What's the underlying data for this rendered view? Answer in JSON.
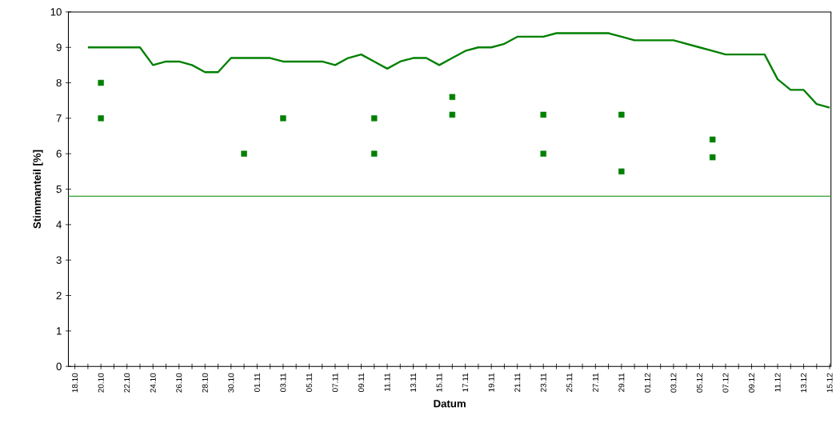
{
  "chart_data": {
    "type": "line",
    "xlabel": "Datum",
    "ylabel": "Stimmanteil [%]",
    "categories": [
      "18.10",
      null,
      "20.10",
      null,
      "22.10",
      null,
      "24.10",
      null,
      "26.10",
      null,
      "28.10",
      null,
      "30.10",
      null,
      "01.11",
      null,
      "03.11",
      null,
      "05.11",
      null,
      "07.11",
      null,
      "09.11",
      null,
      "11.11",
      null,
      "13.11",
      null,
      "15.11",
      null,
      "17.11",
      null,
      "19.11",
      null,
      "21.11",
      null,
      "23.11",
      null,
      "25.11",
      null,
      "27.11",
      null,
      "29.11",
      null,
      "01.12",
      null,
      "03.12",
      null,
      "05.12",
      null,
      "07.12",
      null,
      "09.12",
      null,
      "11.12",
      null,
      "13.12",
      null,
      "15.12"
    ],
    "ylim": [
      0,
      10
    ],
    "yticks": [
      0,
      1,
      2,
      3,
      4,
      5,
      6,
      7,
      8,
      9,
      10
    ],
    "series": [
      {
        "color": "#008000",
        "values": [
          null,
          9.0,
          9.0,
          9.0,
          9.0,
          9.0,
          8.5,
          8.6,
          8.6,
          8.5,
          8.3,
          8.3,
          8.7,
          8.7,
          8.7,
          8.7,
          8.6,
          8.6,
          8.6,
          8.6,
          8.5,
          8.7,
          8.8,
          8.6,
          8.4,
          8.6,
          8.7,
          8.7,
          8.5,
          8.7,
          8.9,
          9.0,
          9.0,
          9.1,
          9.3,
          9.3,
          9.3,
          9.4,
          9.4,
          9.4,
          9.4,
          9.4,
          9.3,
          9.2,
          9.2,
          9.2,
          9.2,
          9.1,
          9.0,
          8.9,
          8.8,
          8.8,
          8.8,
          8.8,
          8.1,
          7.8,
          7.8,
          7.4,
          7.3
        ]
      },
      {
        "type": "scatter",
        "marker": "square",
        "color": "#008000",
        "values": [
          null,
          null,
          8.0,
          null,
          null,
          null,
          null,
          null,
          null,
          null,
          null,
          null,
          null,
          6.0,
          null,
          null,
          7.0,
          null,
          null,
          null,
          null,
          null,
          null,
          7.0,
          null,
          null,
          null,
          null,
          null,
          7.6,
          null,
          null,
          null,
          null,
          null,
          null,
          7.1,
          null,
          null,
          null,
          null,
          null,
          7.1,
          null,
          null,
          null,
          null,
          null,
          null,
          6.4,
          null,
          null,
          null,
          null,
          null,
          null,
          null,
          null,
          null
        ]
      },
      {
        "type": "scatter",
        "marker": "square",
        "color": "#008000",
        "values": [
          null,
          null,
          7.0,
          null,
          null,
          null,
          null,
          null,
          null,
          null,
          null,
          null,
          null,
          null,
          null,
          null,
          null,
          null,
          null,
          null,
          null,
          null,
          null,
          6.0,
          null,
          null,
          null,
          null,
          null,
          7.1,
          null,
          null,
          null,
          null,
          null,
          null,
          6.0,
          null,
          null,
          null,
          null,
          null,
          5.5,
          null,
          null,
          null,
          null,
          null,
          null,
          5.9,
          null,
          null,
          null,
          null,
          null,
          null,
          null,
          null,
          null
        ]
      }
    ],
    "ref_lines": [
      {
        "axis": "y",
        "value": 4.8,
        "color": "#33a033"
      }
    ]
  }
}
